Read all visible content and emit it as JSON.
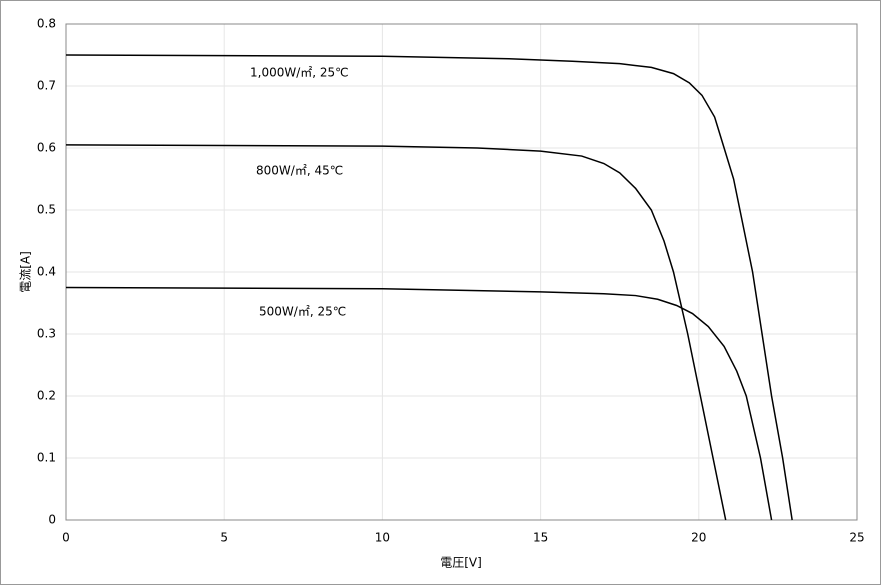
{
  "chart_data": {
    "type": "line",
    "x_label": "電圧[V]",
    "y_label": "電流[A]",
    "xlim": [
      0,
      25
    ],
    "xticks": [
      0,
      5,
      10,
      15,
      20,
      25
    ],
    "ylim": [
      0,
      0.8
    ],
    "yticks": [
      0,
      0.1,
      0.2,
      0.3,
      0.4,
      0.5,
      0.6,
      0.7,
      0.8
    ],
    "grid": true,
    "series": [
      {
        "name": "1,000W/㎡, 25℃",
        "color": "#000000",
        "x": [
          0,
          5,
          10,
          14,
          16,
          17.5,
          18.5,
          19.2,
          19.7,
          20.1,
          20.5,
          20.8,
          21.1,
          21.3,
          21.7,
          22.0,
          22.3,
          22.65,
          22.95
        ],
        "values": [
          0.75,
          0.749,
          0.748,
          0.744,
          0.74,
          0.736,
          0.73,
          0.72,
          0.705,
          0.685,
          0.65,
          0.6,
          0.55,
          0.5,
          0.4,
          0.3,
          0.2,
          0.1,
          0
        ]
      },
      {
        "name": "800W/㎡, 45℃",
        "color": "#000000",
        "x": [
          0,
          5,
          10,
          13,
          15,
          16.3,
          17.0,
          17.5,
          18.0,
          18.5,
          18.9,
          19.2,
          19.65,
          20.05,
          20.45,
          20.85
        ],
        "values": [
          0.605,
          0.604,
          0.603,
          0.6,
          0.595,
          0.587,
          0.575,
          0.56,
          0.535,
          0.5,
          0.45,
          0.4,
          0.3,
          0.2,
          0.1,
          0
        ]
      },
      {
        "name": "500W/㎡, 25℃",
        "color": "#000000",
        "x": [
          0,
          5,
          10,
          15,
          17,
          18,
          18.7,
          19.3,
          19.8,
          20.3,
          20.8,
          21.2,
          21.5,
          21.95,
          22.3
        ],
        "values": [
          0.375,
          0.374,
          0.373,
          0.368,
          0.365,
          0.362,
          0.356,
          0.346,
          0.333,
          0.312,
          0.28,
          0.24,
          0.2,
          0.1,
          0
        ]
      }
    ]
  }
}
